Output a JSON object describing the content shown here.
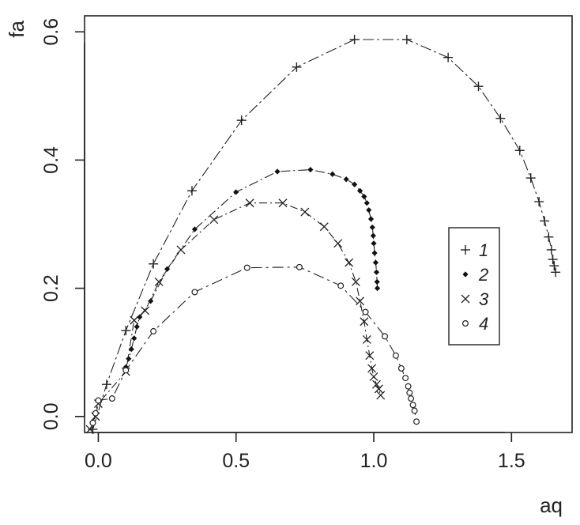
{
  "chart_data": {
    "type": "scatter",
    "xlabel": "aq",
    "ylabel": "fa",
    "xlim": [
      -0.05,
      1.72
    ],
    "ylim": [
      -0.025,
      0.625
    ],
    "x_ticks": [
      {
        "value": 0.0,
        "label": "0.0"
      },
      {
        "value": 0.5,
        "label": "0.5"
      },
      {
        "value": 1.0,
        "label": "1.0"
      },
      {
        "value": 1.5,
        "label": "1.5"
      }
    ],
    "y_ticks": [
      {
        "value": 0.0,
        "label": "0.0"
      },
      {
        "value": 0.2,
        "label": "0.2"
      },
      {
        "value": 0.4,
        "label": "0.4"
      },
      {
        "value": 0.6,
        "label": "0.6"
      }
    ],
    "grid": false,
    "legend": {
      "position": "right",
      "labels": [
        "1",
        "2",
        "3",
        "4"
      ]
    },
    "series": [
      {
        "name": "1",
        "marker": "plus",
        "points": [
          [
            -0.02,
            -0.02
          ],
          [
            0.03,
            0.05
          ],
          [
            0.1,
            0.134
          ],
          [
            0.2,
            0.238
          ],
          [
            0.34,
            0.352
          ],
          [
            0.52,
            0.462
          ],
          [
            0.72,
            0.545
          ],
          [
            0.93,
            0.588
          ],
          [
            1.12,
            0.588
          ],
          [
            1.27,
            0.56
          ],
          [
            1.38,
            0.515
          ],
          [
            1.46,
            0.465
          ],
          [
            1.53,
            0.415
          ],
          [
            1.57,
            0.372
          ],
          [
            1.6,
            0.335
          ],
          [
            1.62,
            0.305
          ],
          [
            1.635,
            0.28
          ],
          [
            1.645,
            0.26
          ],
          [
            1.65,
            0.245
          ],
          [
            1.655,
            0.235
          ],
          [
            1.66,
            0.225
          ]
        ]
      },
      {
        "name": "2",
        "marker": "diamond",
        "points": [
          [
            0.1,
            0.077
          ],
          [
            0.11,
            0.09
          ],
          [
            0.12,
            0.105
          ],
          [
            0.13,
            0.122
          ],
          [
            0.14,
            0.14
          ],
          [
            0.15,
            0.155
          ],
          [
            0.19,
            0.18
          ],
          [
            0.25,
            0.23
          ],
          [
            0.35,
            0.292
          ],
          [
            0.5,
            0.35
          ],
          [
            0.65,
            0.382
          ],
          [
            0.77,
            0.385
          ],
          [
            0.85,
            0.378
          ],
          [
            0.9,
            0.37
          ],
          [
            0.93,
            0.362
          ],
          [
            0.95,
            0.352
          ],
          [
            0.965,
            0.343
          ],
          [
            0.975,
            0.333
          ],
          [
            0.982,
            0.322
          ],
          [
            0.99,
            0.308
          ],
          [
            0.995,
            0.295
          ],
          [
            0.998,
            0.282
          ],
          [
            1.0,
            0.27
          ],
          [
            1.003,
            0.255
          ],
          [
            1.007,
            0.24
          ],
          [
            1.01,
            0.225
          ],
          [
            1.012,
            0.21
          ],
          [
            1.013,
            0.2
          ]
        ]
      },
      {
        "name": "3",
        "marker": "cross",
        "points": [
          [
            -0.03,
            -0.02
          ],
          [
            -0.01,
            0.0
          ],
          [
            0.0,
            0.02
          ],
          [
            0.1,
            0.07
          ],
          [
            0.13,
            0.15
          ],
          [
            0.17,
            0.165
          ],
          [
            0.22,
            0.21
          ],
          [
            0.3,
            0.26
          ],
          [
            0.42,
            0.307
          ],
          [
            0.55,
            0.333
          ],
          [
            0.67,
            0.333
          ],
          [
            0.75,
            0.319
          ],
          [
            0.82,
            0.296
          ],
          [
            0.87,
            0.27
          ],
          [
            0.91,
            0.24
          ],
          [
            0.935,
            0.21
          ],
          [
            0.95,
            0.18
          ],
          [
            0.965,
            0.148
          ],
          [
            0.975,
            0.12
          ],
          [
            0.985,
            0.095
          ],
          [
            0.993,
            0.075
          ],
          [
            1.0,
            0.062
          ],
          [
            1.01,
            0.05
          ],
          [
            1.018,
            0.043
          ],
          [
            1.025,
            0.033
          ]
        ]
      },
      {
        "name": "4",
        "marker": "circle",
        "points": [
          [
            -0.02,
            -0.01
          ],
          [
            -0.01,
            0.005
          ],
          [
            0.0,
            0.025
          ],
          [
            0.05,
            0.028
          ],
          [
            0.1,
            0.072
          ],
          [
            0.2,
            0.133
          ],
          [
            0.35,
            0.194
          ],
          [
            0.54,
            0.232
          ],
          [
            0.73,
            0.233
          ],
          [
            0.88,
            0.204
          ],
          [
            0.97,
            0.163
          ],
          [
            1.04,
            0.125
          ],
          [
            1.08,
            0.095
          ],
          [
            1.1,
            0.075
          ],
          [
            1.115,
            0.06
          ],
          [
            1.125,
            0.047
          ],
          [
            1.13,
            0.037
          ],
          [
            1.135,
            0.028
          ],
          [
            1.142,
            0.018
          ],
          [
            1.148,
            0.009
          ],
          [
            1.155,
            -0.008
          ]
        ]
      }
    ]
  }
}
